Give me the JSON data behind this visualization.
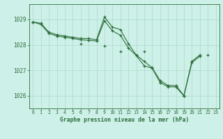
{
  "title": "Graphe pression niveau de la mer (hPa)",
  "background_color": "#cdf0e8",
  "grid_color": "#b0ddd0",
  "line_color": "#2d6e3a",
  "ylim": [
    1025.5,
    1029.6
  ],
  "yticks": [
    1026,
    1027,
    1028,
    1029
  ],
  "xlim": [
    -0.5,
    23.5
  ],
  "series_a": [
    1028.9,
    1028.85,
    1028.5,
    1028.4,
    1028.35,
    1028.3,
    1028.25,
    1028.25,
    1028.2,
    1029.1,
    1028.7,
    1028.6,
    1028.05,
    1027.6,
    1027.35,
    1027.1,
    1026.6,
    1026.4,
    1026.4,
    1026.0,
    1027.35,
    1027.6,
    null,
    null
  ],
  "series_b": [
    1028.9,
    1028.8,
    1028.45,
    1028.35,
    1028.3,
    1028.25,
    1028.2,
    1028.18,
    1028.15,
    1028.95,
    1028.55,
    1028.38,
    1027.88,
    1027.58,
    1027.18,
    1027.08,
    1026.52,
    1026.35,
    1026.35,
    1026.0,
    1027.3,
    1027.55,
    null,
    null
  ],
  "series_c": [
    1028.9,
    null,
    null,
    1028.35,
    null,
    null,
    1028.05,
    null,
    null,
    1027.95,
    null,
    1027.75,
    null,
    null,
    1027.75,
    null,
    1026.52,
    null,
    1026.35,
    1026.0,
    null,
    null,
    1027.6,
    null
  ]
}
